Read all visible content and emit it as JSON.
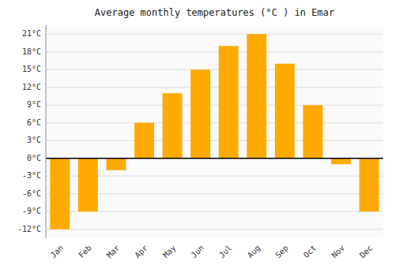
{
  "chart_data": {
    "type": "bar",
    "title": "Average monthly temperatures (°C ) in Emar",
    "categories": [
      "Jan",
      "Feb",
      "Mar",
      "Apr",
      "May",
      "Jun",
      "Jul",
      "Aug",
      "Sep",
      "Oct",
      "Nov",
      "Dec"
    ],
    "values": [
      -12,
      -9,
      -2,
      6,
      11,
      15,
      19,
      21,
      16,
      9,
      -1,
      -9
    ],
    "color": "#FFAA00",
    "ylim": [
      -13.5,
      22.5
    ],
    "yticks": [
      {
        "value": -12,
        "label": "-12°C"
      },
      {
        "value": -9,
        "label": "-9°C"
      },
      {
        "value": -6,
        "label": "-6°C"
      },
      {
        "value": -3,
        "label": "-3°C"
      },
      {
        "value": 0,
        "label": "0°C"
      },
      {
        "value": 3,
        "label": "3°C"
      },
      {
        "value": 6,
        "label": "6°C"
      },
      {
        "value": 9,
        "label": "9°C"
      },
      {
        "value": 12,
        "label": "12°C"
      },
      {
        "value": 15,
        "label": "15°C"
      },
      {
        "value": 18,
        "label": "18°C"
      },
      {
        "value": 21,
        "label": "21°C"
      }
    ],
    "grid": true
  }
}
